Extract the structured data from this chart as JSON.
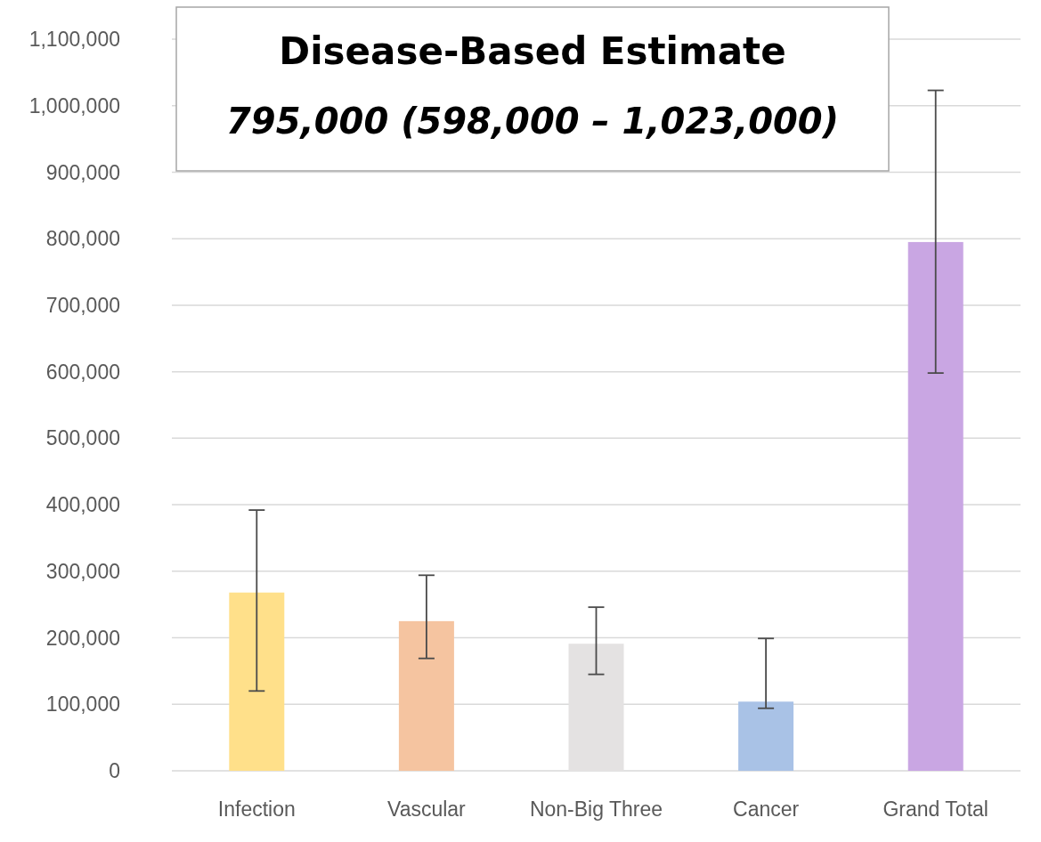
{
  "chart_data": {
    "type": "bar",
    "title": "Disease-Based Estimate",
    "subtitle": "795,000 (598,000 – 1,023,000)",
    "categories": [
      "Infection",
      "Vascular",
      "Non-Big Three",
      "Cancer",
      "Grand Total"
    ],
    "values": [
      268000,
      225000,
      191000,
      104000,
      795000
    ],
    "colors": [
      "#ffe08a",
      "#f5c4a0",
      "#e4e2e2",
      "#a9c2e6",
      "#c9a6e3"
    ],
    "errors": [
      [
        120000,
        392000
      ],
      [
        169000,
        294000
      ],
      [
        145000,
        246000
      ],
      [
        94000,
        199000
      ],
      [
        598000,
        1023000
      ]
    ],
    "ylim": [
      0,
      1100000
    ],
    "yticks": [
      {
        "value": 0,
        "label": "0"
      },
      {
        "value": 100000,
        "label": "100,000"
      },
      {
        "value": 200000,
        "label": "200,000"
      },
      {
        "value": 300000,
        "label": "300,000"
      },
      {
        "value": 400000,
        "label": "400,000"
      },
      {
        "value": 500000,
        "label": "500,000"
      },
      {
        "value": 600000,
        "label": "600,000"
      },
      {
        "value": 700000,
        "label": "700,000"
      },
      {
        "value": 800000,
        "label": "800,000"
      },
      {
        "value": 900000,
        "label": "900,000"
      },
      {
        "value": 1000000,
        "label": "1,000,000"
      },
      {
        "value": 1100000,
        "label": "1,100,000"
      }
    ],
    "grid": "y"
  }
}
